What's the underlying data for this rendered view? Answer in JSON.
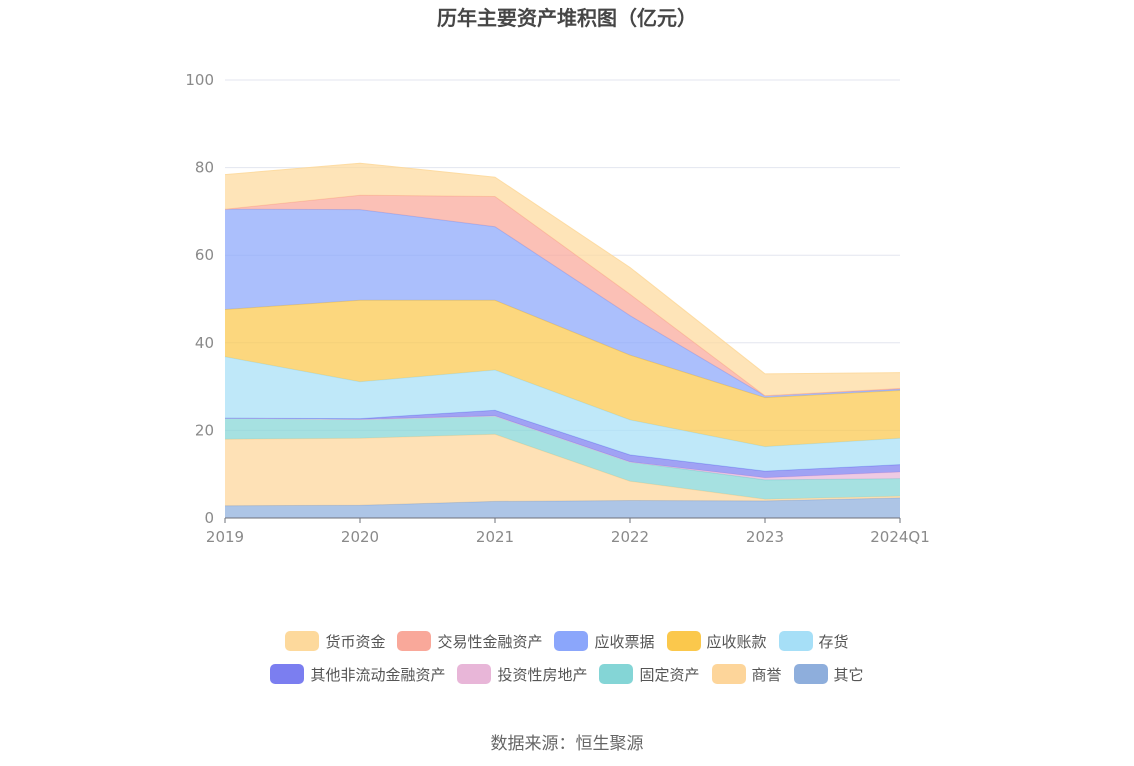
{
  "title": "历年主要资产堆积图（亿元）",
  "source": "数据来源：恒生聚源",
  "chart_data": {
    "type": "area",
    "stacked": true,
    "title": "历年主要资产堆积图（亿元）",
    "categories": [
      "2019",
      "2020",
      "2021",
      "2022",
      "2023",
      "2024Q1"
    ],
    "ylim": [
      0,
      100
    ],
    "yticks": [
      0,
      20,
      40,
      60,
      80,
      100
    ],
    "grid": true,
    "legend_position": "bottom",
    "series": [
      {
        "name": "其它",
        "color": "#8eaedc",
        "values": [
          2.8,
          2.9,
          3.8,
          4.0,
          3.9,
          4.6
        ]
      },
      {
        "name": "商誉",
        "color": "#fdd59a",
        "values": [
          15.2,
          15.3,
          15.3,
          4.4,
          0.4,
          0.4
        ]
      },
      {
        "name": "固定资产",
        "color": "#84d5d6",
        "values": [
          4.8,
          4.3,
          4.2,
          4.4,
          4.4,
          4.0
        ]
      },
      {
        "name": "投资性房地产",
        "color": "#e8b6d8",
        "values": [
          0.0,
          0.0,
          0.0,
          0.0,
          0.5,
          1.5
        ]
      },
      {
        "name": "其他非流动金融资产",
        "color": "#7b7ef0",
        "values": [
          0.0,
          0.2,
          1.3,
          1.6,
          1.5,
          1.7
        ]
      },
      {
        "name": "存货",
        "color": "#a6dff7",
        "values": [
          14.0,
          8.4,
          9.2,
          8.0,
          5.6,
          6.0
        ]
      },
      {
        "name": "应收账款",
        "color": "#fbc84c",
        "values": [
          10.8,
          18.6,
          15.9,
          14.8,
          11.2,
          10.9
        ]
      },
      {
        "name": "应收票据",
        "color": "#8ba6fb",
        "values": [
          22.9,
          20.7,
          16.8,
          9.0,
          0.4,
          0.3
        ]
      },
      {
        "name": "交易性金融资产",
        "color": "#f9a89a",
        "values": [
          0.0,
          3.3,
          6.9,
          4.9,
          0.0,
          0.2
        ]
      },
      {
        "name": "货币资金",
        "color": "#fdd99c",
        "values": [
          7.9,
          7.3,
          4.4,
          6.1,
          5.0,
          3.6
        ]
      }
    ]
  },
  "legend": {
    "rows": [
      [
        {
          "label": "货币资金",
          "color": "#fdd99c"
        },
        {
          "label": "交易性金融资产",
          "color": "#f9a89a"
        },
        {
          "label": "应收票据",
          "color": "#8ba6fb"
        },
        {
          "label": "应收账款",
          "color": "#fbc84c"
        },
        {
          "label": "存货",
          "color": "#a6dff7"
        }
      ],
      [
        {
          "label": "其他非流动金融资产",
          "color": "#7b7ef0"
        },
        {
          "label": "投资性房地产",
          "color": "#e8b6d8"
        },
        {
          "label": "固定资产",
          "color": "#84d5d6"
        },
        {
          "label": "商誉",
          "color": "#fdd59a"
        },
        {
          "label": "其它",
          "color": "#8eaedc"
        }
      ]
    ]
  }
}
